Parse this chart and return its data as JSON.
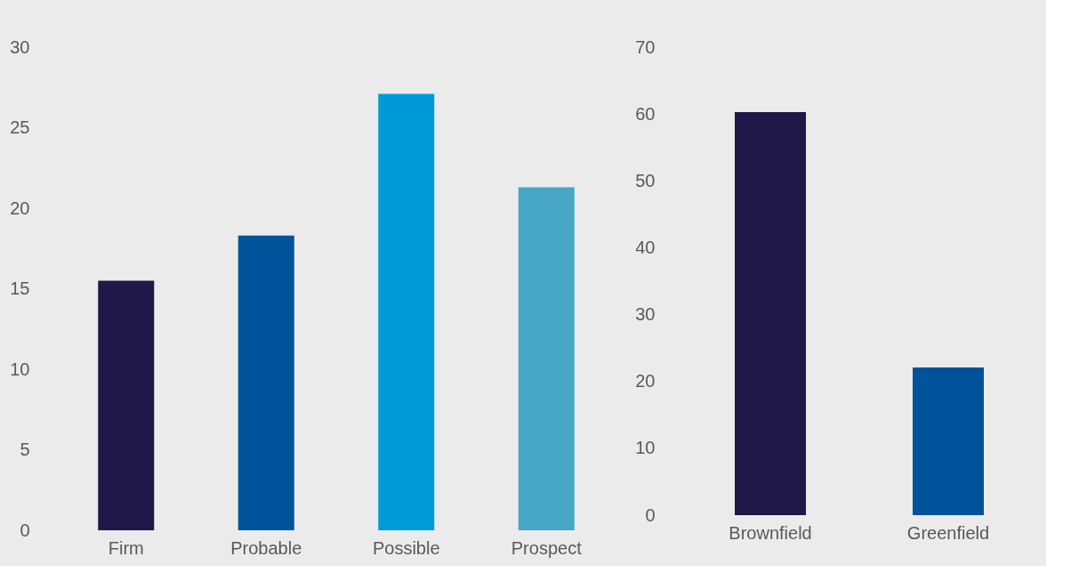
{
  "chart_data": [
    {
      "type": "bar",
      "categories": [
        "Firm",
        "Probable",
        "Possible",
        "Prospect"
      ],
      "values": [
        15.5,
        18.3,
        27.1,
        21.3
      ],
      "colors": [
        "#201848",
        "#00529b",
        "#009ad9",
        "#47a7c4"
      ],
      "ylim": [
        0,
        30
      ],
      "yticks": [
        0,
        5,
        10,
        15,
        20,
        25,
        30
      ]
    },
    {
      "type": "bar",
      "categories": [
        "Brownfield",
        "Greenfield"
      ],
      "values": [
        60.3,
        22.1
      ],
      "colors": [
        "#201848",
        "#00529b"
      ],
      "ylim": [
        0,
        70
      ],
      "yticks": [
        0,
        10,
        20,
        30,
        40,
        50,
        60,
        70
      ]
    }
  ]
}
